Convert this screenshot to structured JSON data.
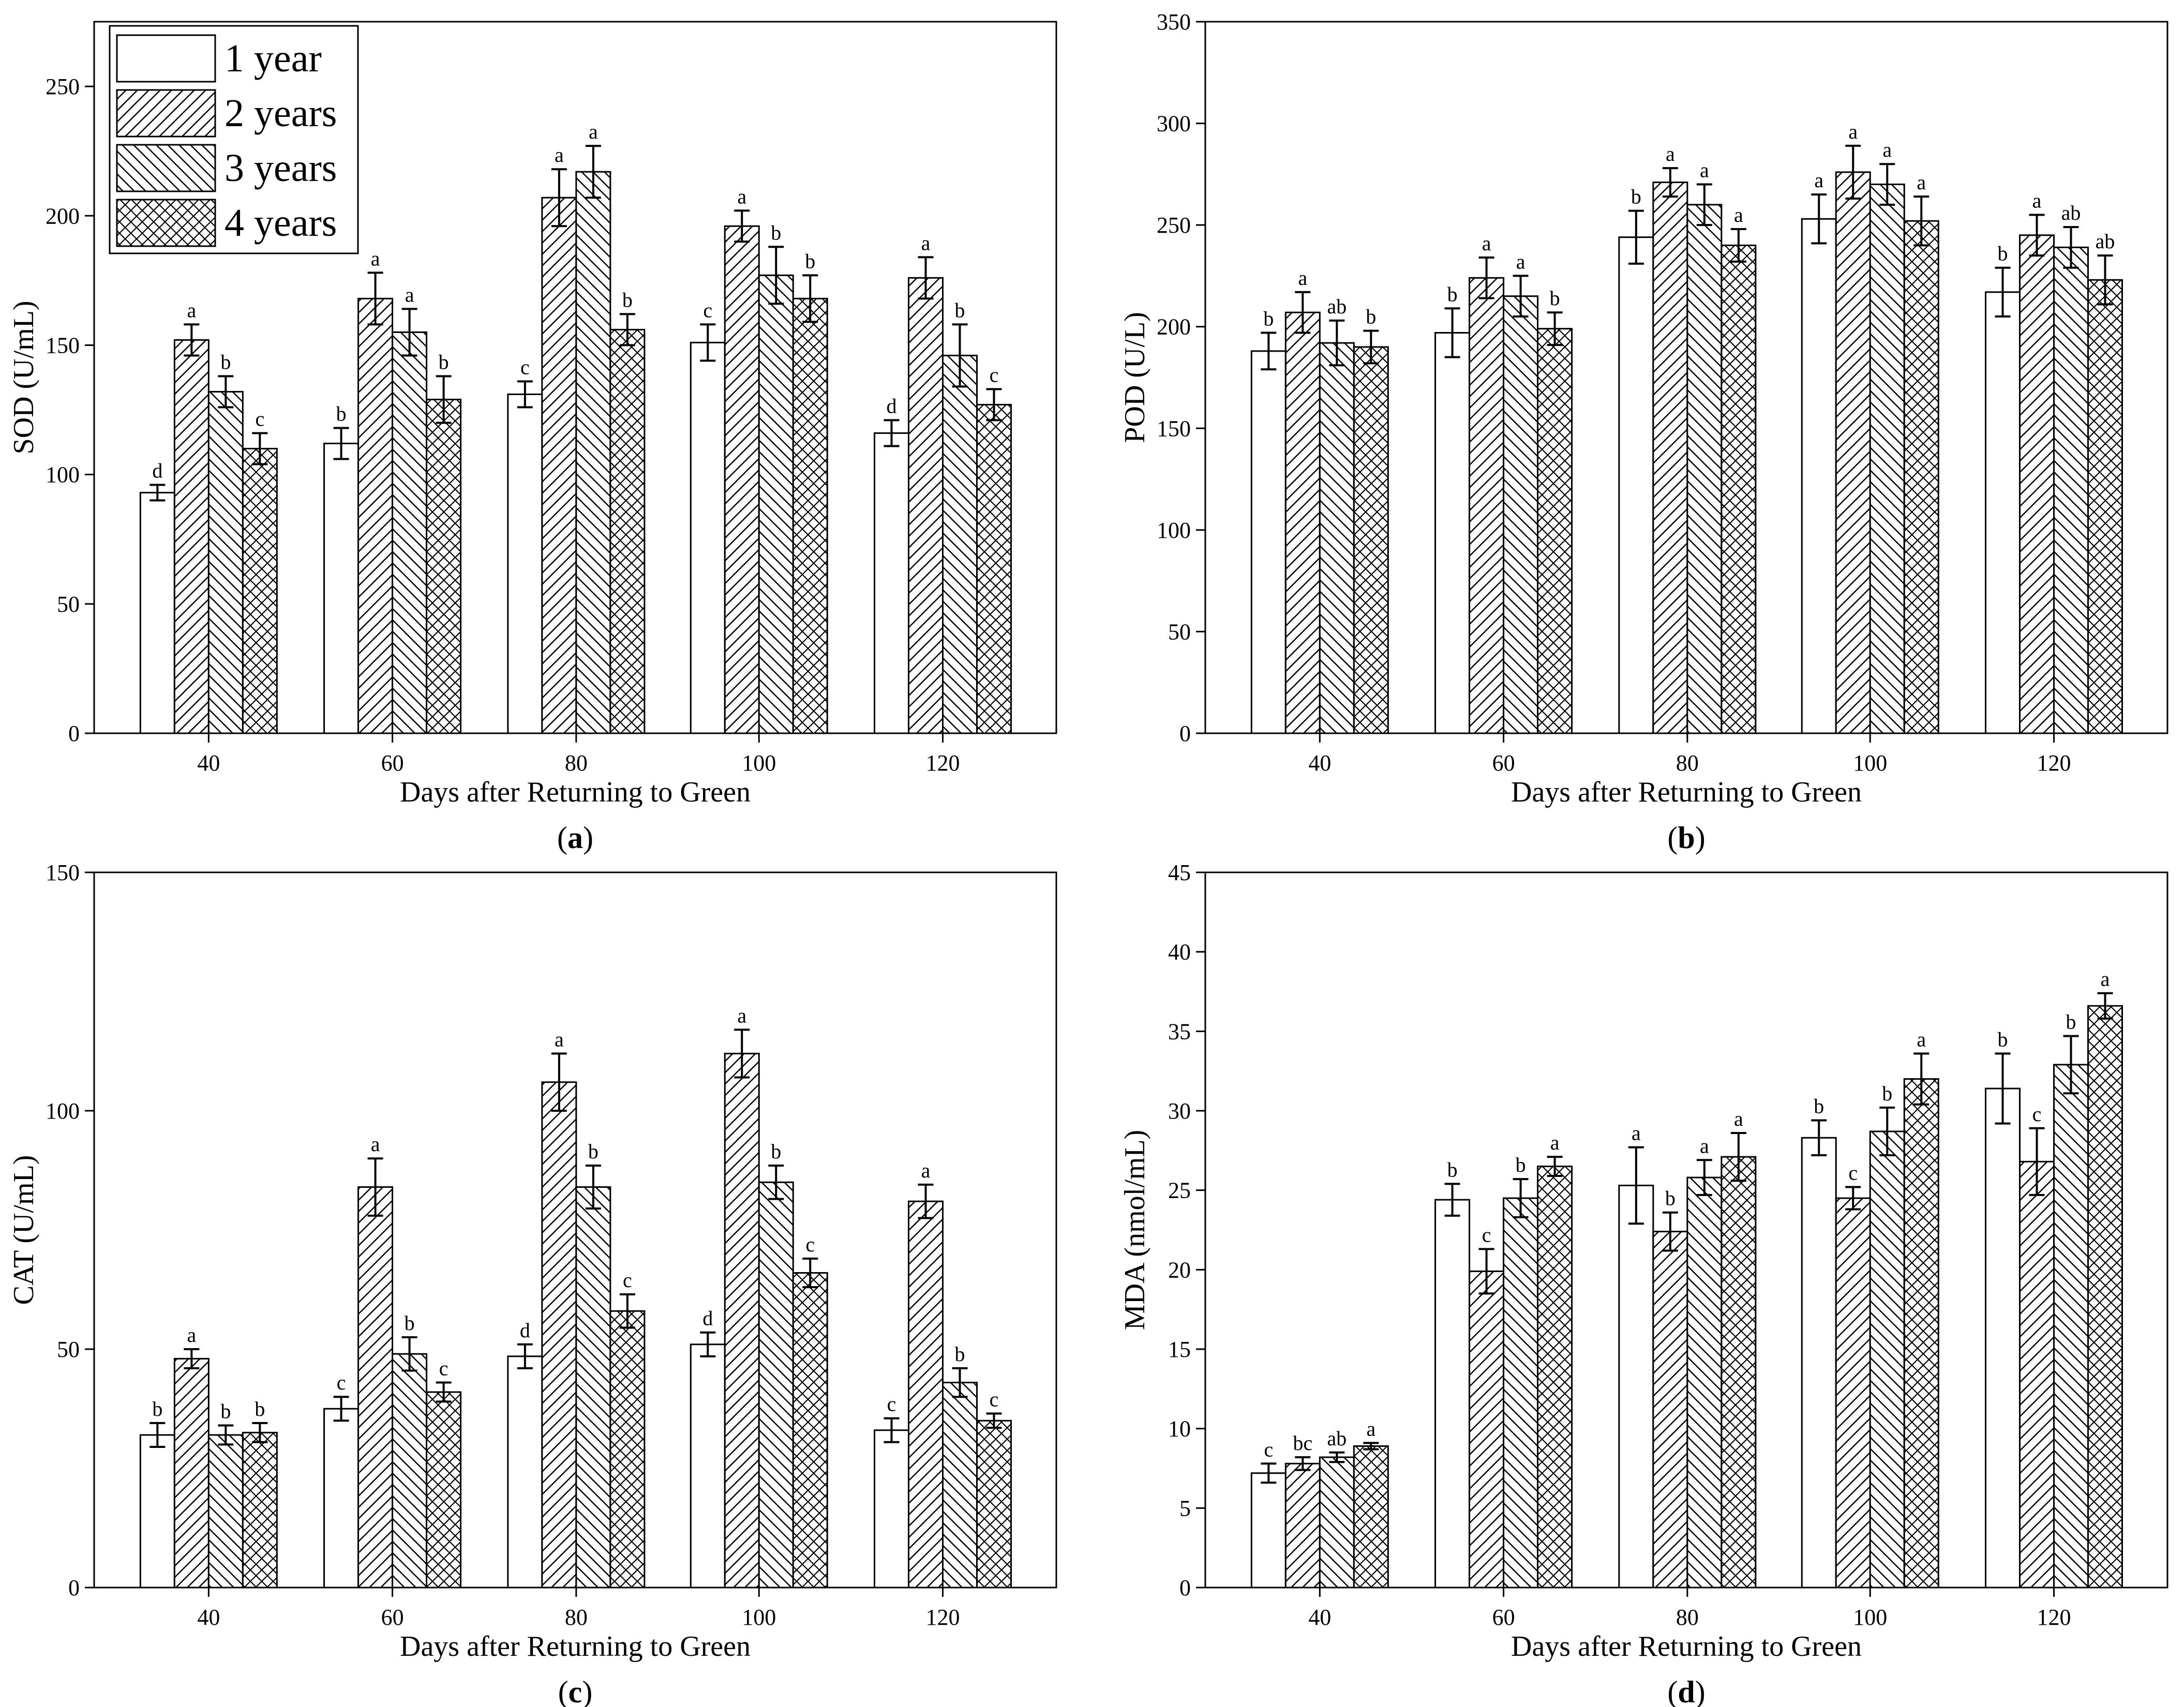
{
  "chart_data": [
    {
      "type": "bar",
      "panel_label": "a",
      "xlabel": "Days after Returning to Green",
      "ylabel": "SOD (U/mL)",
      "ylim": [
        0,
        275
      ],
      "yticks": [
        0,
        50,
        100,
        150,
        200,
        250
      ],
      "categories": [
        "40",
        "60",
        "80",
        "100",
        "120"
      ],
      "legend_position": "top-left",
      "series": [
        {
          "name": "1 year",
          "pattern": "none",
          "values": [
            93,
            112,
            131,
            151,
            116
          ],
          "errors": [
            3,
            6,
            5,
            7,
            5
          ],
          "letters": [
            "d",
            "b",
            "c",
            "c",
            "d"
          ]
        },
        {
          "name": "2 years",
          "pattern": "slash",
          "values": [
            152,
            168,
            207,
            196,
            176
          ],
          "errors": [
            6,
            10,
            11,
            6,
            8
          ],
          "letters": [
            "a",
            "a",
            "a",
            "a",
            "a"
          ]
        },
        {
          "name": "3 years",
          "pattern": "backslash",
          "values": [
            132,
            155,
            217,
            177,
            146
          ],
          "errors": [
            6,
            9,
            10,
            11,
            12
          ],
          "letters": [
            "b",
            "a",
            "a",
            "b",
            "b"
          ]
        },
        {
          "name": "4 years",
          "pattern": "cross",
          "values": [
            110,
            129,
            156,
            168,
            127
          ],
          "errors": [
            6,
            9,
            6,
            9,
            6
          ],
          "letters": [
            "c",
            "b",
            "b",
            "b",
            "c"
          ]
        }
      ]
    },
    {
      "type": "bar",
      "panel_label": "b",
      "xlabel": "Days after Returning to Green",
      "ylabel": "POD (U/L)",
      "ylim": [
        0,
        350
      ],
      "yticks": [
        0,
        50,
        100,
        150,
        200,
        250,
        300,
        350
      ],
      "categories": [
        "40",
        "60",
        "80",
        "100",
        "120"
      ],
      "series": [
        {
          "name": "1 year",
          "pattern": "none",
          "values": [
            188,
            197,
            244,
            253,
            217
          ],
          "errors": [
            9,
            12,
            13,
            12,
            12
          ],
          "letters": [
            "b",
            "b",
            "b",
            "a",
            "b"
          ]
        },
        {
          "name": "2 years",
          "pattern": "slash",
          "values": [
            207,
            224,
            271,
            276,
            245
          ],
          "errors": [
            10,
            10,
            7,
            13,
            10
          ],
          "letters": [
            "a",
            "a",
            "a",
            "a",
            "a"
          ]
        },
        {
          "name": "3 years",
          "pattern": "backslash",
          "values": [
            192,
            215,
            260,
            270,
            239
          ],
          "errors": [
            11,
            10,
            10,
            10,
            10
          ],
          "letters": [
            "ab",
            "a",
            "a",
            "a",
            "ab"
          ]
        },
        {
          "name": "4 years",
          "pattern": "cross",
          "values": [
            190,
            199,
            240,
            252,
            223
          ],
          "errors": [
            8,
            8,
            8,
            12,
            12
          ],
          "letters": [
            "b",
            "b",
            "a",
            "a",
            "ab"
          ]
        }
      ]
    },
    {
      "type": "bar",
      "panel_label": "c",
      "xlabel": "Days after Returning to Green",
      "ylabel": "CAT (U/mL)",
      "ylim": [
        0,
        150
      ],
      "yticks": [
        0,
        50,
        100,
        150
      ],
      "categories": [
        "40",
        "60",
        "80",
        "100",
        "120"
      ],
      "series": [
        {
          "name": "1 year",
          "pattern": "none",
          "values": [
            32,
            37.5,
            48.5,
            51,
            33
          ],
          "errors": [
            2.5,
            2.5,
            2.5,
            2.5,
            2.5
          ],
          "letters": [
            "b",
            "c",
            "d",
            "d",
            "c"
          ]
        },
        {
          "name": "2 years",
          "pattern": "slash",
          "values": [
            48,
            84,
            106,
            112,
            81
          ],
          "errors": [
            2,
            6,
            6,
            5,
            3.5
          ],
          "letters": [
            "a",
            "a",
            "a",
            "a",
            "a"
          ]
        },
        {
          "name": "3 years",
          "pattern": "backslash",
          "values": [
            32,
            49,
            84,
            85,
            43
          ],
          "errors": [
            2,
            3.5,
            4.5,
            3.5,
            3
          ],
          "letters": [
            "b",
            "b",
            "b",
            "b",
            "b"
          ]
        },
        {
          "name": "4 years",
          "pattern": "cross",
          "values": [
            32.5,
            41,
            58,
            66,
            35
          ],
          "errors": [
            2,
            2,
            3.5,
            3,
            1.5
          ],
          "letters": [
            "b",
            "c",
            "c",
            "c",
            "c"
          ]
        }
      ]
    },
    {
      "type": "bar",
      "panel_label": "d",
      "xlabel": "Days after Returning to Green",
      "ylabel": "MDA (nmol/mL)",
      "ylim": [
        0,
        45
      ],
      "yticks": [
        0,
        5,
        10,
        15,
        20,
        25,
        30,
        35,
        40,
        45
      ],
      "categories": [
        "40",
        "60",
        "80",
        "100",
        "120"
      ],
      "series": [
        {
          "name": "1 year",
          "pattern": "none",
          "values": [
            7.2,
            24.4,
            25.3,
            28.3,
            31.4
          ],
          "errors": [
            0.6,
            1.0,
            2.4,
            1.1,
            2.2
          ],
          "letters": [
            "c",
            "b",
            "a",
            "b",
            "b"
          ]
        },
        {
          "name": "2 years",
          "pattern": "slash",
          "values": [
            7.8,
            19.9,
            22.4,
            24.5,
            26.8
          ],
          "errors": [
            0.4,
            1.4,
            1.2,
            0.7,
            2.1
          ],
          "letters": [
            "bc",
            "c",
            "b",
            "c",
            "c"
          ]
        },
        {
          "name": "3 years",
          "pattern": "backslash",
          "values": [
            8.2,
            24.5,
            25.8,
            28.7,
            32.9
          ],
          "errors": [
            0.3,
            1.2,
            1.1,
            1.5,
            1.8
          ],
          "letters": [
            "ab",
            "b",
            "a",
            "b",
            "b"
          ]
        },
        {
          "name": "4 years",
          "pattern": "cross",
          "values": [
            8.9,
            26.5,
            27.1,
            32.0,
            36.6
          ],
          "errors": [
            0.2,
            0.6,
            1.5,
            1.6,
            0.8
          ],
          "letters": [
            "a",
            "a",
            "a",
            "a",
            "a"
          ]
        }
      ]
    }
  ]
}
